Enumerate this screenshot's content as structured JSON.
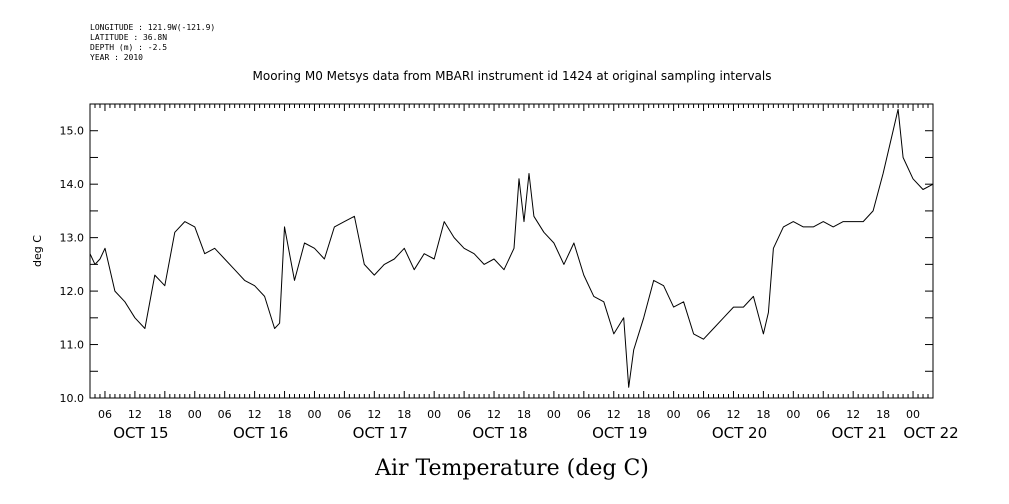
{
  "header": {
    "meta_lines": [
      "LONGITUDE : 121.9W(-121.9)",
      "LATITUDE : 36.8N",
      "DEPTH (m) : -2.5",
      "YEAR : 2010"
    ],
    "title": "Mooring M0 Metsys data from MBARI instrument id 1424 at original sampling intervals"
  },
  "chart_data": {
    "type": "line",
    "title": "Mooring M0 Metsys data from MBARI instrument id 1424 at original sampling intervals",
    "xlabel": "Air Temperature (deg C)",
    "ylabel": "deg C",
    "ylim": [
      10.0,
      15.5
    ],
    "yticks": [
      "10.0",
      "11.0",
      "12.0",
      "13.0",
      "14.0",
      "15.0"
    ],
    "xlim": [
      "2010-10-15 03:00",
      "2010-10-22 04:00"
    ],
    "xtick_labels": [
      "06",
      "12",
      "18",
      "00",
      "06",
      "12",
      "18",
      "00",
      "06",
      "12",
      "18",
      "00",
      "06",
      "12",
      "18",
      "00",
      "06",
      "12",
      "18",
      "00",
      "06",
      "12",
      "18",
      "00",
      "06",
      "12",
      "18",
      "00"
    ],
    "day_labels": [
      "OCT 15",
      "OCT 16",
      "OCT 17",
      "OCT 18",
      "OCT 19",
      "OCT 20",
      "OCT 21",
      "OCT 22"
    ],
    "grid": false,
    "series": [
      {
        "name": "",
        "x": [
          "2010-10-15 03:00",
          "2010-10-15 04:00",
          "2010-10-15 05:00",
          "2010-10-15 06:00",
          "2010-10-15 08:00",
          "2010-10-15 10:00",
          "2010-10-15 12:00",
          "2010-10-15 14:00",
          "2010-10-15 16:00",
          "2010-10-15 18:00",
          "2010-10-15 20:00",
          "2010-10-15 22:00",
          "2010-10-16 00:00",
          "2010-10-16 02:00",
          "2010-10-16 04:00",
          "2010-10-16 06:00",
          "2010-10-16 08:00",
          "2010-10-16 10:00",
          "2010-10-16 12:00",
          "2010-10-16 14:00",
          "2010-10-16 16:00",
          "2010-10-16 17:00",
          "2010-10-16 18:00",
          "2010-10-16 20:00",
          "2010-10-16 22:00",
          "2010-10-17 00:00",
          "2010-10-17 02:00",
          "2010-10-17 04:00",
          "2010-10-17 06:00",
          "2010-10-17 08:00",
          "2010-10-17 10:00",
          "2010-10-17 12:00",
          "2010-10-17 14:00",
          "2010-10-17 16:00",
          "2010-10-17 18:00",
          "2010-10-17 20:00",
          "2010-10-17 22:00",
          "2010-10-18 00:00",
          "2010-10-18 02:00",
          "2010-10-18 04:00",
          "2010-10-18 06:00",
          "2010-10-18 08:00",
          "2010-10-18 10:00",
          "2010-10-18 12:00",
          "2010-10-18 14:00",
          "2010-10-18 16:00",
          "2010-10-18 17:00",
          "2010-10-18 18:00",
          "2010-10-18 19:00",
          "2010-10-18 20:00",
          "2010-10-18 22:00",
          "2010-10-19 00:00",
          "2010-10-19 02:00",
          "2010-10-19 04:00",
          "2010-10-19 06:00",
          "2010-10-19 08:00",
          "2010-10-19 10:00",
          "2010-10-19 12:00",
          "2010-10-19 14:00",
          "2010-10-19 15:00",
          "2010-10-19 16:00",
          "2010-10-19 18:00",
          "2010-10-19 20:00",
          "2010-10-19 22:00",
          "2010-10-20 00:00",
          "2010-10-20 02:00",
          "2010-10-20 04:00",
          "2010-10-20 06:00",
          "2010-10-20 08:00",
          "2010-10-20 10:00",
          "2010-10-20 12:00",
          "2010-10-20 14:00",
          "2010-10-20 16:00",
          "2010-10-20 18:00",
          "2010-10-20 19:00",
          "2010-10-20 20:00",
          "2010-10-20 22:00",
          "2010-10-21 00:00",
          "2010-10-21 02:00",
          "2010-10-21 04:00",
          "2010-10-21 06:00",
          "2010-10-21 08:00",
          "2010-10-21 10:00",
          "2010-10-21 12:00",
          "2010-10-21 14:00",
          "2010-10-21 16:00",
          "2010-10-21 18:00",
          "2010-10-21 19:00",
          "2010-10-21 20:00",
          "2010-10-21 21:00",
          "2010-10-21 22:00",
          "2010-10-22 00:00",
          "2010-10-22 02:00",
          "2010-10-22 04:00"
        ],
        "values": [
          12.7,
          12.5,
          12.6,
          12.8,
          12.0,
          11.8,
          11.5,
          11.3,
          12.3,
          12.1,
          13.1,
          13.3,
          13.2,
          12.7,
          12.8,
          12.6,
          12.4,
          12.2,
          12.1,
          11.9,
          11.3,
          11.4,
          13.2,
          12.2,
          12.9,
          12.8,
          12.6,
          13.2,
          13.3,
          13.4,
          12.5,
          12.3,
          12.5,
          12.6,
          12.8,
          12.4,
          12.7,
          12.6,
          13.3,
          13.0,
          12.8,
          12.7,
          12.5,
          12.6,
          12.4,
          12.8,
          14.1,
          13.3,
          14.2,
          13.4,
          13.1,
          12.9,
          12.5,
          12.9,
          12.3,
          11.9,
          11.8,
          11.2,
          11.5,
          10.2,
          10.9,
          11.5,
          12.2,
          12.1,
          11.7,
          11.8,
          11.2,
          11.1,
          11.3,
          11.5,
          11.7,
          11.7,
          11.9,
          11.2,
          11.6,
          12.8,
          13.2,
          13.3,
          13.2,
          13.2,
          13.3,
          13.2,
          13.3,
          13.3,
          13.3,
          13.5,
          14.2,
          14.6,
          15.0,
          15.4,
          14.5,
          14.1,
          13.9,
          14.0
        ]
      }
    ]
  }
}
